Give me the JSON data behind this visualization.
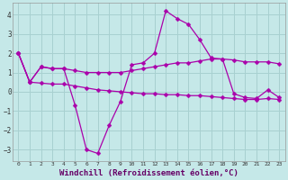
{
  "background_color": "#c5e8e8",
  "grid_color": "#a8d0d0",
  "line_color": "#aa00aa",
  "marker_size": 2.5,
  "xlabel": "Windchill (Refroidissement éolien,°C)",
  "xlabel_fontsize": 6.5,
  "xlim": [
    -0.5,
    23.5
  ],
  "ylim": [
    -3.6,
    4.6
  ],
  "yticks": [
    -3,
    -2,
    -1,
    0,
    1,
    2,
    3,
    4
  ],
  "xticks": [
    0,
    1,
    2,
    3,
    4,
    5,
    6,
    7,
    8,
    9,
    10,
    11,
    12,
    13,
    14,
    15,
    16,
    17,
    18,
    19,
    20,
    21,
    22,
    23
  ],
  "s1": [
    2.0,
    0.5,
    1.3,
    1.2,
    1.2,
    -0.7,
    -3.0,
    -3.2,
    -1.75,
    -0.5,
    1.4,
    1.5,
    2.0,
    4.2,
    3.8,
    3.5,
    2.7,
    1.75,
    1.7,
    -0.1,
    -0.3,
    -0.35,
    0.1,
    -0.3
  ],
  "s2": [
    2.0,
    0.5,
    1.3,
    1.2,
    1.2,
    1.1,
    1.0,
    1.0,
    1.0,
    1.0,
    1.1,
    1.2,
    1.3,
    1.4,
    1.5,
    1.5,
    1.6,
    1.7,
    1.7,
    1.65,
    1.55,
    1.55,
    1.55,
    1.45
  ],
  "s3": [
    2.0,
    0.5,
    0.45,
    0.4,
    0.4,
    0.3,
    0.2,
    0.1,
    0.05,
    0.0,
    -0.05,
    -0.1,
    -0.1,
    -0.15,
    -0.15,
    -0.2,
    -0.2,
    -0.25,
    -0.3,
    -0.35,
    -0.4,
    -0.4,
    -0.35,
    -0.4
  ]
}
